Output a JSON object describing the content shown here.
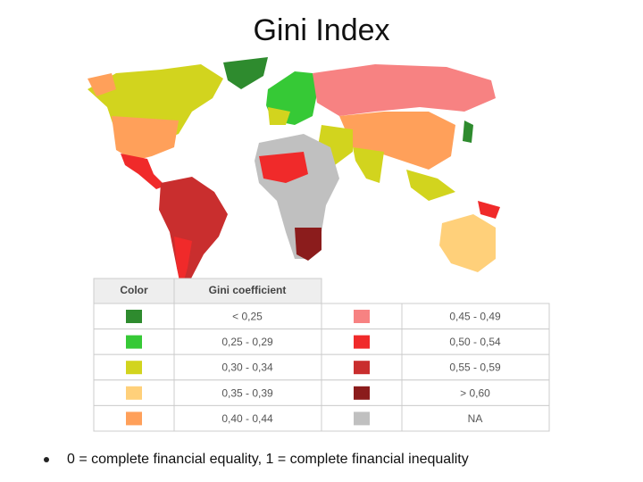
{
  "title": "Gini Index",
  "legend": {
    "headers": [
      "Color",
      "Gini coefficient"
    ],
    "items": [
      {
        "label": "< 0,25",
        "color": "#2e8b2e"
      },
      {
        "label": "0,25 - 0,29",
        "color": "#36c936"
      },
      {
        "label": "0,30 - 0,34",
        "color": "#d2d41e"
      },
      {
        "label": "0,35 - 0,39",
        "color": "#ffd07a"
      },
      {
        "label": "0,40 - 0,44",
        "color": "#ffa05a"
      },
      {
        "label": "0,45 - 0,49",
        "color": "#f78282"
      },
      {
        "label": "0,50 - 0,54",
        "color": "#f02a2a"
      },
      {
        "label": "0,55 - 0,59",
        "color": "#c92e2e"
      },
      {
        "label": "> 0,60",
        "color": "#8b1c1c"
      },
      {
        "label": "NA",
        "color": "#c0c0c0"
      }
    ]
  },
  "bullet": "0 = complete financial equality, 1 = complete financial inequality"
}
